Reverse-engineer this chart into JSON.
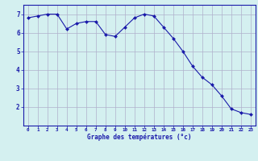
{
  "x": [
    0,
    1,
    2,
    3,
    4,
    5,
    6,
    7,
    8,
    9,
    10,
    11,
    12,
    13,
    14,
    15,
    16,
    17,
    18,
    19,
    20,
    21,
    22,
    23
  ],
  "y": [
    6.8,
    6.9,
    7.0,
    7.0,
    6.2,
    6.5,
    6.6,
    6.6,
    5.9,
    5.8,
    6.3,
    6.8,
    7.0,
    6.9,
    6.3,
    5.7,
    5.0,
    4.2,
    3.6,
    3.2,
    2.6,
    1.9,
    1.7,
    1.6
  ],
  "xlabel": "Graphe des températures (°c)",
  "ylim": [
    1.0,
    7.5
  ],
  "xlim": [
    -0.5,
    23.5
  ],
  "bg_color": "#d4f0f0",
  "line_color": "#1a1aaa",
  "marker_color": "#1a1aaa",
  "grid_color": "#b0b0cc",
  "axis_color": "#1a1aaa",
  "tick_color": "#1a1aaa",
  "xlabel_color": "#1a1aaa",
  "yticks": [
    2,
    3,
    4,
    5,
    6,
    7
  ],
  "xticks": [
    0,
    1,
    2,
    3,
    4,
    5,
    6,
    7,
    8,
    9,
    10,
    11,
    12,
    13,
    14,
    15,
    16,
    17,
    18,
    19,
    20,
    21,
    22,
    23
  ]
}
